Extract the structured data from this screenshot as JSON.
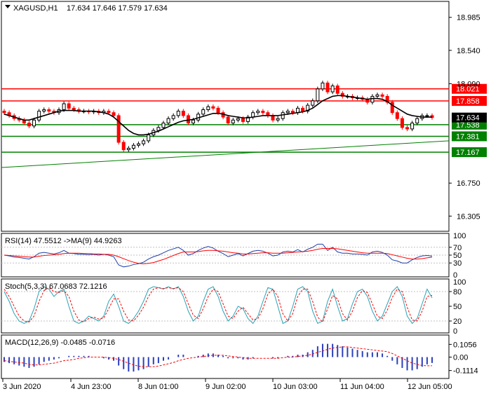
{
  "header": {
    "symbol_label": "XAGUSD,H1",
    "ohlc_text": "17.634 17.646 17.579 17.634"
  },
  "colors": {
    "up": "#000000",
    "down": "#ff0000",
    "ma": "#000000",
    "resistance": "#ff0000",
    "support": "#008000",
    "price_badge": "#000000",
    "rsi": "#1f3fa8",
    "rsi_ma": "#ff0000",
    "stoch_main": "#2aa3b8",
    "stoch_signal": "#ff0000",
    "macd_hist": "#2a3fbf",
    "macd_signal": "#ff0000",
    "levels_dotted": "#c0c0c0"
  },
  "chart_data": [
    {
      "type": "candlestick",
      "title": "XAGUSD,H1",
      "ylim": [
        16.1,
        19.2
      ],
      "y_ticks": [
        "18.985",
        "18.540",
        "18.090",
        "17.634",
        "16.750",
        "16.305"
      ],
      "x_ticks": [
        "3 Jun 2020",
        "4 Jun 23:00",
        "8 Jun 01:00",
        "9 Jun 02:00",
        "10 Jun 03:00",
        "11 Jun 04:00",
        "12 Jun 05:00"
      ],
      "last_price": "17.634",
      "horizontal_levels": [
        {
          "value": 18.021,
          "label": "18.021",
          "kind": "resistance"
        },
        {
          "value": 17.858,
          "label": "17.858",
          "kind": "resistance"
        },
        {
          "value": 17.538,
          "label": "17.538",
          "kind": "support"
        },
        {
          "value": 17.381,
          "label": "17.381",
          "kind": "support"
        },
        {
          "value": 17.167,
          "label": "17.167",
          "kind": "support"
        }
      ],
      "trendline": {
        "start": 16.96,
        "end": 17.32
      },
      "close": [
        17.7,
        17.66,
        17.62,
        17.6,
        17.56,
        17.52,
        17.6,
        17.72,
        17.74,
        17.72,
        17.7,
        17.74,
        17.82,
        17.76,
        17.74,
        17.72,
        17.72,
        17.71,
        17.72,
        17.7,
        17.72,
        17.7,
        17.66,
        17.3,
        17.2,
        17.22,
        17.26,
        17.28,
        17.32,
        17.4,
        17.46,
        17.5,
        17.56,
        17.62,
        17.66,
        17.72,
        17.66,
        17.56,
        17.6,
        17.68,
        17.74,
        17.78,
        17.76,
        17.7,
        17.64,
        17.56,
        17.6,
        17.62,
        17.58,
        17.64,
        17.7,
        17.72,
        17.7,
        17.66,
        17.6,
        17.62,
        17.7,
        17.72,
        17.7,
        17.76,
        17.72,
        17.8,
        17.86,
        18.02,
        18.1,
        17.98,
        18.06,
        17.96,
        17.92,
        17.92,
        17.9,
        17.9,
        17.88,
        17.84,
        17.92,
        17.94,
        17.92,
        17.84,
        17.7,
        17.62,
        17.5,
        17.48,
        17.56,
        17.62,
        17.66,
        17.66,
        17.634
      ],
      "ma": [
        17.68,
        17.66,
        17.64,
        17.62,
        17.6,
        17.6,
        17.62,
        17.64,
        17.66,
        17.68,
        17.7,
        17.72,
        17.73,
        17.73,
        17.73,
        17.72,
        17.72,
        17.72,
        17.72,
        17.71,
        17.7,
        17.68,
        17.64,
        17.58,
        17.52,
        17.46,
        17.42,
        17.4,
        17.4,
        17.41,
        17.43,
        17.45,
        17.48,
        17.51,
        17.54,
        17.57,
        17.59,
        17.6,
        17.61,
        17.63,
        17.65,
        17.67,
        17.69,
        17.69,
        17.68,
        17.66,
        17.65,
        17.64,
        17.63,
        17.63,
        17.64,
        17.65,
        17.66,
        17.66,
        17.66,
        17.66,
        17.67,
        17.68,
        17.69,
        17.7,
        17.71,
        17.73,
        17.76,
        17.81,
        17.86,
        17.89,
        17.92,
        17.93,
        17.93,
        17.92,
        17.91,
        17.9,
        17.89,
        17.88,
        17.89,
        17.89,
        17.88,
        17.85,
        17.8,
        17.76,
        17.72,
        17.68,
        17.66,
        17.65,
        17.64,
        17.64,
        17.64
      ]
    },
    {
      "type": "line",
      "title": "RSI(14) 47.5512  ->MA(9) 44.9263",
      "ylim": [
        0,
        100
      ],
      "levels": [
        70,
        50,
        30
      ],
      "y_ticks": [
        "100",
        "70",
        "50",
        "30",
        "0"
      ],
      "series": [
        {
          "name": "RSI(14)",
          "values": [
            50,
            48,
            45,
            44,
            42,
            40,
            46,
            55,
            57,
            55,
            53,
            56,
            62,
            55,
            54,
            52,
            52,
            51,
            52,
            50,
            52,
            50,
            46,
            25,
            20,
            22,
            26,
            28,
            32,
            40,
            46,
            50,
            56,
            62,
            66,
            70,
            62,
            50,
            54,
            62,
            68,
            72,
            68,
            60,
            54,
            46,
            50,
            54,
            48,
            54,
            60,
            62,
            60,
            55,
            48,
            50,
            58,
            60,
            58,
            64,
            58,
            65,
            70,
            78,
            78,
            62,
            70,
            58,
            55,
            55,
            53,
            53,
            52,
            50,
            58,
            60,
            57,
            50,
            38,
            35,
            30,
            30,
            38,
            44,
            48,
            49,
            47.5512
          ]
        },
        {
          "name": "MA(9)",
          "values": [
            50,
            49,
            48,
            47,
            46,
            45,
            45,
            47,
            49,
            50,
            51,
            52,
            54,
            55,
            55,
            55,
            54,
            54,
            53,
            53,
            52,
            52,
            50,
            46,
            41,
            36,
            32,
            29,
            28,
            29,
            31,
            35,
            39,
            44,
            49,
            54,
            58,
            58,
            58,
            59,
            61,
            62,
            62,
            61,
            60,
            58,
            56,
            55,
            53,
            53,
            54,
            55,
            56,
            56,
            55,
            55,
            55,
            56,
            57,
            58,
            59,
            60,
            62,
            65,
            67,
            67,
            67,
            66,
            64,
            62,
            60,
            58,
            56,
            55,
            55,
            55,
            55,
            54,
            51,
            48,
            45,
            42,
            40,
            40,
            41,
            43,
            44.9263
          ]
        }
      ]
    },
    {
      "type": "line",
      "title": "Stoch(5,3,3) 67.0683 72.1216",
      "ylim": [
        0,
        100
      ],
      "levels": [
        80,
        20
      ],
      "y_ticks": [
        "100",
        "80",
        "50",
        "20",
        "0"
      ],
      "series": [
        {
          "name": "Stoch main",
          "values": [
            80,
            60,
            35,
            20,
            15,
            20,
            45,
            80,
            90,
            85,
            70,
            80,
            85,
            50,
            20,
            15,
            20,
            30,
            25,
            20,
            30,
            60,
            75,
            50,
            20,
            15,
            25,
            40,
            60,
            85,
            90,
            88,
            85,
            90,
            85,
            90,
            70,
            40,
            20,
            30,
            60,
            85,
            90,
            70,
            40,
            20,
            30,
            50,
            45,
            25,
            15,
            30,
            60,
            88,
            85,
            50,
            15,
            20,
            50,
            85,
            90,
            80,
            40,
            15,
            20,
            60,
            85,
            50,
            20,
            25,
            55,
            80,
            85,
            70,
            40,
            20,
            30,
            55,
            80,
            90,
            70,
            30,
            15,
            25,
            55,
            85,
            67.0683
          ]
        },
        {
          "name": "Stoch signal",
          "values": [
            85,
            70,
            50,
            30,
            20,
            18,
            30,
            60,
            82,
            88,
            80,
            78,
            82,
            70,
            40,
            22,
            18,
            25,
            28,
            24,
            26,
            45,
            65,
            65,
            40,
            22,
            20,
            32,
            48,
            70,
            85,
            88,
            86,
            88,
            86,
            88,
            80,
            55,
            32,
            25,
            45,
            70,
            85,
            80,
            55,
            30,
            25,
            40,
            48,
            35,
            22,
            25,
            45,
            75,
            85,
            70,
            35,
            20,
            35,
            70,
            85,
            85,
            60,
            28,
            18,
            45,
            72,
            65,
            35,
            22,
            40,
            68,
            82,
            78,
            55,
            30,
            25,
            42,
            68,
            85,
            80,
            48,
            22,
            20,
            40,
            70,
            72.1216
          ]
        }
      ]
    },
    {
      "type": "bar",
      "title": "MACD(12,26,9) -0.0485 -0.0716",
      "ylim": [
        -0.16,
        0.16
      ],
      "y_ticks": [
        "0.1056",
        "0.00",
        "-0.1114"
      ],
      "series": [
        {
          "name": "MACD",
          "values": [
            -0.04,
            -0.05,
            -0.06,
            -0.07,
            -0.08,
            -0.09,
            -0.08,
            -0.06,
            -0.04,
            -0.03,
            -0.02,
            -0.01,
            0.0,
            0.01,
            0.01,
            0.01,
            0.01,
            0.01,
            0.0,
            0.0,
            -0.01,
            -0.02,
            -0.03,
            -0.07,
            -0.1,
            -0.12,
            -0.12,
            -0.11,
            -0.1,
            -0.08,
            -0.06,
            -0.05,
            -0.03,
            -0.02,
            0.0,
            0.02,
            0.02,
            0.0,
            0.0,
            0.01,
            0.02,
            0.03,
            0.03,
            0.02,
            0.01,
            -0.01,
            -0.01,
            -0.01,
            -0.02,
            -0.02,
            -0.01,
            0.0,
            0.0,
            0.0,
            -0.01,
            -0.01,
            0.0,
            0.01,
            0.01,
            0.02,
            0.02,
            0.04,
            0.06,
            0.09,
            0.11,
            0.11,
            0.11,
            0.1,
            0.09,
            0.08,
            0.07,
            0.06,
            0.05,
            0.04,
            0.04,
            0.04,
            0.03,
            0.01,
            -0.03,
            -0.06,
            -0.09,
            -0.11,
            -0.11,
            -0.1,
            -0.08,
            -0.06,
            -0.0485
          ]
        },
        {
          "name": "Signal",
          "values": [
            -0.03,
            -0.035,
            -0.04,
            -0.045,
            -0.05,
            -0.06,
            -0.065,
            -0.065,
            -0.06,
            -0.055,
            -0.05,
            -0.04,
            -0.03,
            -0.025,
            -0.02,
            -0.01,
            -0.005,
            0.0,
            0.0,
            0.0,
            0.0,
            -0.005,
            -0.01,
            -0.02,
            -0.035,
            -0.05,
            -0.065,
            -0.075,
            -0.08,
            -0.08,
            -0.08,
            -0.075,
            -0.065,
            -0.055,
            -0.045,
            -0.03,
            -0.02,
            -0.01,
            -0.005,
            0.0,
            0.005,
            0.01,
            0.015,
            0.015,
            0.015,
            0.01,
            0.005,
            0.0,
            -0.005,
            -0.01,
            -0.01,
            -0.01,
            -0.01,
            -0.01,
            -0.01,
            -0.01,
            -0.005,
            0.0,
            0.0,
            0.005,
            0.01,
            0.015,
            0.025,
            0.04,
            0.05,
            0.065,
            0.075,
            0.08,
            0.085,
            0.085,
            0.08,
            0.075,
            0.07,
            0.065,
            0.06,
            0.055,
            0.05,
            0.045,
            0.03,
            0.01,
            -0.01,
            -0.03,
            -0.05,
            -0.06,
            -0.07,
            -0.072,
            -0.0716
          ]
        }
      ]
    }
  ]
}
